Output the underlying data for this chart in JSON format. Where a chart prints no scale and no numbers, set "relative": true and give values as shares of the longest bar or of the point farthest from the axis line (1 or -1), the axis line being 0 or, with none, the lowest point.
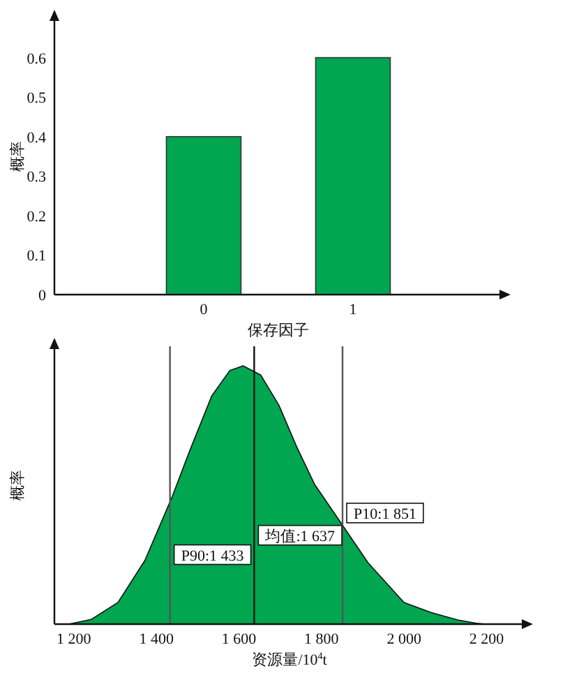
{
  "chart_data": [
    {
      "type": "bar",
      "categories": [
        "0",
        "1"
      ],
      "values": [
        0.4,
        0.6
      ],
      "color": "#00a650",
      "xlabel": "保存因子",
      "ylabel": "概率",
      "ylim": [
        0,
        0.7
      ],
      "yticks": [
        0,
        0.1,
        0.2,
        0.3,
        0.4,
        0.5,
        0.6
      ]
    },
    {
      "type": "area",
      "relative": true,
      "color": "#00a650",
      "xlabel": "资源量/10$^{4}$t",
      "ylabel": "概率",
      "xlim": [
        1153,
        2292
      ],
      "xticks": [
        {
          "value": 1200,
          "label": "1 200"
        },
        {
          "value": 1400,
          "label": "1 400"
        },
        {
          "value": 1600,
          "label": "1 600"
        },
        {
          "value": 1800,
          "label": "1 800"
        },
        {
          "value": 2000,
          "label": "2 000"
        },
        {
          "value": 2200,
          "label": "2 200"
        }
      ],
      "x": [
        1188,
        1242,
        1307,
        1372,
        1437,
        1480,
        1534,
        1578,
        1610,
        1653,
        1697,
        1740,
        1783,
        1848,
        1913,
        2000,
        2065,
        2130,
        2173,
        2195
      ],
      "values": [
        0,
        0.018,
        0.084,
        0.246,
        0.488,
        0.668,
        0.883,
        0.982,
        1,
        0.964,
        0.847,
        0.686,
        0.542,
        0.39,
        0.237,
        0.084,
        0.045,
        0.016,
        0.004,
        0
      ],
      "ref_lines": [
        {
          "axis": "x",
          "value": 1433,
          "label": "P90:1 433",
          "color": "#555555"
        },
        {
          "axis": "x",
          "value": 1637,
          "label": "均值:1 637",
          "color": "#111111"
        },
        {
          "axis": "x",
          "value": 1851,
          "label": "P10:1 851",
          "color": "#555555"
        }
      ]
    }
  ]
}
